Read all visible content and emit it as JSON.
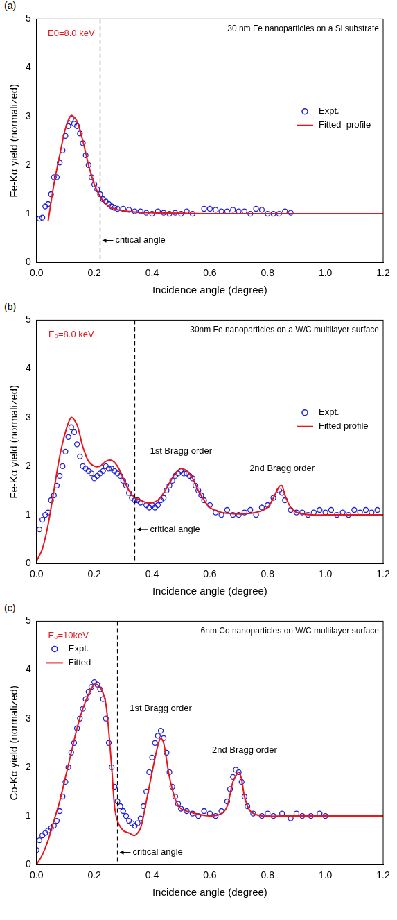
{
  "chart_data": [
    {
      "panel": "(a)",
      "type": "scatter",
      "title": "30 nm Fe nanoparticles on a Si substrate",
      "x_label": "Incidence angle (degree)",
      "y_label": "Fe-Kα yield (normalized)",
      "xlim": [
        0,
        1.2
      ],
      "ylim": [
        0,
        5
      ],
      "xticks": [
        {
          "value": 0,
          "label": "0.0"
        },
        0.2,
        0.4,
        0.6,
        0.8,
        {
          "value": 1,
          "label": "1.0"
        },
        1.2
      ],
      "yticks": [
        0,
        1,
        2,
        3,
        4,
        5
      ],
      "grid": false,
      "legend": "right",
      "critical_angle": {
        "x": 0.22,
        "label": "critical angle",
        "label_y": 0.45
      },
      "annotations": [
        {
          "text": "E0=8.0 keV",
          "x": 0.12,
          "y": 4.7,
          "color": "#e8161b"
        }
      ],
      "series": [
        {
          "name": "Expt.",
          "color": "#1f1fd6",
          "marker": "open_circle",
          "line_style": "none",
          "x": [
            0.01,
            0.02,
            0.03,
            0.04,
            0.05,
            0.06,
            0.07,
            0.08,
            0.09,
            0.1,
            0.11,
            0.12,
            0.13,
            0.14,
            0.15,
            0.16,
            0.17,
            0.18,
            0.19,
            0.2,
            0.21,
            0.22,
            0.23,
            0.24,
            0.25,
            0.26,
            0.27,
            0.28,
            0.3,
            0.32,
            0.34,
            0.36,
            0.38,
            0.4,
            0.42,
            0.44,
            0.46,
            0.48,
            0.5,
            0.52,
            0.54,
            0.58,
            0.6,
            0.62,
            0.64,
            0.66,
            0.68,
            0.7,
            0.72,
            0.74,
            0.76,
            0.78,
            0.8,
            0.82,
            0.84,
            0.86,
            0.88
          ],
          "values": [
            0.9,
            0.92,
            1.15,
            1.2,
            1.4,
            1.75,
            1.75,
            2.05,
            2.3,
            2.6,
            2.8,
            2.95,
            2.85,
            2.8,
            2.65,
            2.45,
            2.2,
            2.0,
            1.75,
            1.6,
            1.5,
            1.4,
            1.3,
            1.25,
            1.2,
            1.15,
            1.12,
            1.1,
            1.1,
            1.08,
            1.05,
            1.05,
            1.02,
            1.0,
            1.05,
            1.02,
            1.0,
            1.02,
            1.0,
            1.05,
            1.0,
            1.1,
            1.1,
            1.08,
            1.05,
            1.05,
            1.08,
            1.05,
            1.05,
            1.0,
            1.1,
            1.08,
            1.0,
            1.0,
            1.0,
            1.05,
            1.02
          ]
        },
        {
          "name": "Fitted  profile",
          "color": "#e8161b",
          "marker": "none",
          "line_style": "solid",
          "x": [
            0.04,
            0.06,
            0.08,
            0.1,
            0.12,
            0.14,
            0.16,
            0.18,
            0.2,
            0.22,
            0.24,
            0.26,
            0.3,
            0.35,
            0.4,
            0.5,
            0.6,
            0.8,
            1.0,
            1.2
          ],
          "values": [
            0.85,
            1.6,
            2.2,
            2.75,
            3.02,
            2.9,
            2.5,
            2.0,
            1.6,
            1.35,
            1.2,
            1.12,
            1.06,
            1.03,
            1.02,
            1.01,
            1.0,
            1.0,
            1.0,
            1.0
          ]
        }
      ]
    },
    {
      "panel": "(b)",
      "type": "scatter",
      "title": "30nm Fe nanoparticles on a W/C multilayer surface",
      "x_label": "Incidence angle (degree)",
      "y_label": "Fe-Kα yield (normalized)",
      "xlim": [
        0,
        1.2
      ],
      "ylim": [
        0,
        5
      ],
      "xticks": [
        {
          "value": 0,
          "label": "0.0"
        },
        0.2,
        0.4,
        0.6,
        0.8,
        {
          "value": 1,
          "label": "1.0"
        },
        1.2
      ],
      "yticks": [
        0,
        1,
        2,
        3,
        4,
        5
      ],
      "grid": false,
      "legend": "right",
      "critical_angle": {
        "x": 0.34,
        "label": "critical angle",
        "label_y": 0.7
      },
      "annotations": [
        {
          "text": "E₀=8.0 keV",
          "x": 0.12,
          "y": 4.7,
          "color": "#e8161b"
        },
        {
          "text": "1st Bragg order",
          "x": 0.5,
          "y": 2.3,
          "color": "#000000"
        },
        {
          "text": "2nd Bragg order",
          "x": 0.85,
          "y": 1.95,
          "color": "#000000"
        }
      ],
      "series": [
        {
          "name": "Expt.",
          "color": "#1f1fd6",
          "marker": "open_circle",
          "line_style": "none",
          "x": [
            0.01,
            0.02,
            0.03,
            0.04,
            0.05,
            0.06,
            0.07,
            0.08,
            0.09,
            0.1,
            0.11,
            0.12,
            0.13,
            0.14,
            0.15,
            0.16,
            0.17,
            0.18,
            0.19,
            0.2,
            0.21,
            0.22,
            0.23,
            0.24,
            0.25,
            0.26,
            0.27,
            0.28,
            0.29,
            0.3,
            0.31,
            0.32,
            0.33,
            0.34,
            0.35,
            0.36,
            0.38,
            0.39,
            0.4,
            0.41,
            0.42,
            0.43,
            0.44,
            0.45,
            0.46,
            0.47,
            0.48,
            0.49,
            0.5,
            0.51,
            0.52,
            0.53,
            0.54,
            0.55,
            0.56,
            0.57,
            0.58,
            0.6,
            0.62,
            0.64,
            0.66,
            0.68,
            0.7,
            0.72,
            0.74,
            0.76,
            0.78,
            0.8,
            0.82,
            0.84,
            0.85,
            0.86,
            0.88,
            0.9,
            0.92,
            0.94,
            0.96,
            0.98,
            1.0,
            1.02,
            1.04,
            1.06,
            1.08,
            1.1,
            1.12,
            1.14,
            1.16,
            1.18
          ],
          "values": [
            0.7,
            0.9,
            1.0,
            1.05,
            1.3,
            1.4,
            1.6,
            1.8,
            2.0,
            2.3,
            2.6,
            2.8,
            2.7,
            2.45,
            2.2,
            2.0,
            1.95,
            1.9,
            1.85,
            1.75,
            1.8,
            1.85,
            1.9,
            2.0,
            1.95,
            1.95,
            1.9,
            1.85,
            1.8,
            1.7,
            1.6,
            1.45,
            1.35,
            1.3,
            1.3,
            1.25,
            1.2,
            1.15,
            1.2,
            1.15,
            1.2,
            1.3,
            1.35,
            1.5,
            1.6,
            1.7,
            1.8,
            1.85,
            1.9,
            1.85,
            1.85,
            1.8,
            1.75,
            1.6,
            1.5,
            1.4,
            1.3,
            1.2,
            1.05,
            1.0,
            1.1,
            1.0,
            1.0,
            1.05,
            1.1,
            1.0,
            1.15,
            1.2,
            1.35,
            1.5,
            1.45,
            1.3,
            1.1,
            1.05,
            1.05,
            1.0,
            1.05,
            1.1,
            1.05,
            1.1,
            1.0,
            1.05,
            1.0,
            1.1,
            1.05,
            1.1,
            1.05,
            1.1
          ]
        },
        {
          "name": "Fitted profile",
          "color": "#e8161b",
          "marker": "none",
          "line_style": "solid",
          "x": [
            0,
            0.02,
            0.04,
            0.06,
            0.08,
            0.1,
            0.12,
            0.14,
            0.16,
            0.18,
            0.2,
            0.22,
            0.24,
            0.26,
            0.28,
            0.3,
            0.32,
            0.34,
            0.36,
            0.38,
            0.4,
            0.42,
            0.44,
            0.46,
            0.48,
            0.5,
            0.52,
            0.54,
            0.56,
            0.58,
            0.6,
            0.64,
            0.7,
            0.76,
            0.8,
            0.82,
            0.84,
            0.85,
            0.86,
            0.88,
            0.9,
            0.95,
            1.0,
            1.2
          ],
          "values": [
            0.05,
            0.3,
            0.8,
            1.5,
            2.2,
            2.7,
            3.0,
            2.85,
            2.4,
            2.1,
            2.0,
            2.0,
            2.1,
            2.12,
            2.0,
            1.75,
            1.5,
            1.35,
            1.3,
            1.25,
            1.25,
            1.3,
            1.45,
            1.65,
            1.85,
            1.95,
            1.9,
            1.75,
            1.5,
            1.3,
            1.15,
            1.05,
            1.02,
            1.05,
            1.15,
            1.35,
            1.58,
            1.6,
            1.4,
            1.15,
            1.05,
            1.0,
            1.0,
            1.0
          ]
        }
      ]
    },
    {
      "panel": "(c)",
      "type": "scatter",
      "title": "6nm Co nanoparticles on W/C multilayer surface",
      "x_label": "Incidence angle (degree)",
      "y_label": "Co-Kα yield (normalized)",
      "xlim": [
        0,
        1.2
      ],
      "ylim": [
        0,
        5
      ],
      "xticks": [
        {
          "value": 0,
          "label": "0.0"
        },
        0.2,
        0.4,
        0.6,
        0.8,
        {
          "value": 1,
          "label": "1.0"
        },
        1.2
      ],
      "yticks": [
        0,
        1,
        2,
        3,
        4,
        5
      ],
      "grid": false,
      "legend": "upper left",
      "critical_angle": {
        "x": 0.28,
        "label": "critical angle",
        "label_y": 0.25
      },
      "annotations": [
        {
          "text": "E₀=10keV",
          "x": 0.11,
          "y": 4.7,
          "color": "#e8161b"
        },
        {
          "text": "1st Bragg order",
          "x": 0.43,
          "y": 3.2,
          "color": "#000000"
        },
        {
          "text": "2nd Bragg order",
          "x": 0.72,
          "y": 2.35,
          "color": "#000000"
        }
      ],
      "series": [
        {
          "name": "Expt.",
          "color": "#1f1fd6",
          "marker": "open_circle",
          "line_style": "none",
          "x": [
            0.0,
            0.01,
            0.02,
            0.03,
            0.04,
            0.05,
            0.06,
            0.07,
            0.08,
            0.09,
            0.1,
            0.11,
            0.12,
            0.13,
            0.14,
            0.15,
            0.16,
            0.17,
            0.18,
            0.19,
            0.2,
            0.21,
            0.22,
            0.23,
            0.24,
            0.25,
            0.26,
            0.27,
            0.28,
            0.29,
            0.3,
            0.31,
            0.32,
            0.33,
            0.34,
            0.35,
            0.36,
            0.37,
            0.38,
            0.39,
            0.4,
            0.41,
            0.42,
            0.43,
            0.44,
            0.45,
            0.46,
            0.47,
            0.48,
            0.49,
            0.5,
            0.52,
            0.54,
            0.56,
            0.58,
            0.6,
            0.62,
            0.64,
            0.66,
            0.67,
            0.68,
            0.69,
            0.7,
            0.71,
            0.72,
            0.73,
            0.75,
            0.78,
            0.8,
            0.82,
            0.85,
            0.88,
            0.9,
            0.92,
            0.95,
            0.98,
            1.0
          ],
          "values": [
            0.3,
            0.5,
            0.6,
            0.65,
            0.7,
            0.75,
            0.8,
            0.9,
            1.1,
            1.4,
            1.7,
            2.0,
            2.3,
            2.5,
            2.8,
            3.0,
            3.2,
            3.4,
            3.55,
            3.65,
            3.75,
            3.7,
            3.6,
            3.4,
            3.0,
            2.5,
            2.0,
            1.6,
            1.3,
            1.2,
            1.1,
            1.0,
            0.9,
            0.85,
            0.8,
            0.85,
            0.95,
            1.2,
            1.5,
            1.9,
            2.2,
            2.5,
            2.65,
            2.75,
            2.6,
            2.3,
            1.9,
            1.6,
            1.4,
            1.25,
            1.15,
            1.1,
            1.05,
            1.0,
            1.1,
            1.05,
            1.0,
            1.1,
            1.3,
            1.55,
            1.8,
            1.95,
            1.9,
            1.7,
            1.4,
            1.2,
            1.05,
            1.0,
            1.05,
            1.0,
            1.05,
            0.95,
            1.05,
            1.0,
            1.0,
            1.05,
            1.0
          ]
        },
        {
          "name": "Fitted",
          "color": "#e8161b",
          "marker": "none",
          "line_style": "solid",
          "x": [
            0,
            0.02,
            0.04,
            0.06,
            0.08,
            0.1,
            0.12,
            0.14,
            0.16,
            0.18,
            0.2,
            0.22,
            0.24,
            0.26,
            0.27,
            0.28,
            0.3,
            0.32,
            0.34,
            0.36,
            0.38,
            0.4,
            0.42,
            0.43,
            0.44,
            0.46,
            0.48,
            0.5,
            0.55,
            0.6,
            0.64,
            0.66,
            0.68,
            0.7,
            0.71,
            0.72,
            0.74,
            0.78,
            0.85,
            1.0,
            1.2
          ],
          "values": [
            0.0,
            0.2,
            0.5,
            0.9,
            1.3,
            1.8,
            2.3,
            2.8,
            3.2,
            3.5,
            3.7,
            3.65,
            3.3,
            2.0,
            1.2,
            0.9,
            0.7,
            0.65,
            0.6,
            0.75,
            1.3,
            1.9,
            2.45,
            2.6,
            2.5,
            1.8,
            1.35,
            1.15,
            1.05,
            1.0,
            1.05,
            1.2,
            1.7,
            1.9,
            1.75,
            1.4,
            1.1,
            1.0,
            1.0,
            1.0,
            1.0
          ]
        }
      ]
    }
  ]
}
